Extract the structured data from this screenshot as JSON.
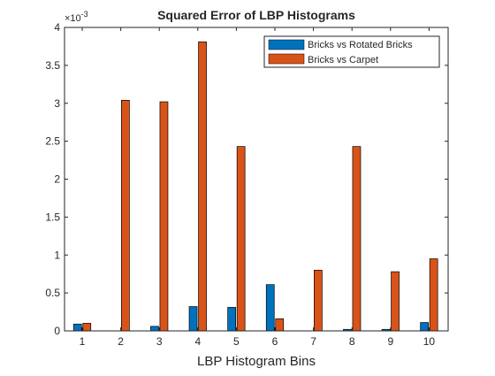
{
  "chart_data": {
    "type": "bar",
    "title": "Squared Error of LBP Histograms",
    "xlabel": "LBP Histogram Bins",
    "ylabel": "",
    "exponent_label": "×10",
    "exponent_power": "-3",
    "categories": [
      "1",
      "2",
      "3",
      "4",
      "5",
      "6",
      "7",
      "8",
      "9",
      "10"
    ],
    "y_scale": 0.001,
    "ylim": [
      0,
      4
    ],
    "yticks": [
      0,
      0.5,
      1,
      1.5,
      2,
      2.5,
      3,
      3.5,
      4
    ],
    "ytick_labels": [
      "0",
      "0.5",
      "1",
      "1.5",
      "2",
      "2.5",
      "3",
      "3.5",
      "4"
    ],
    "series": [
      {
        "name": "Bricks vs Rotated Bricks",
        "color": "#0072BD",
        "values": [
          0.09,
          0.0,
          0.06,
          0.32,
          0.31,
          0.61,
          0.0,
          0.02,
          0.02,
          0.11
        ]
      },
      {
        "name": "Bricks vs Carpet",
        "color": "#D95319",
        "values": [
          0.1,
          3.04,
          3.02,
          3.81,
          2.43,
          0.16,
          0.8,
          2.43,
          0.78,
          0.95
        ]
      }
    ],
    "legend_position": "top-right",
    "grid": false
  }
}
